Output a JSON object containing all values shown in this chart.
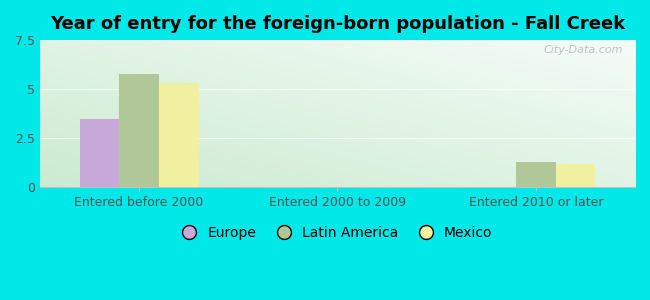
{
  "title": "Year of entry for the foreign-born population - Fall Creek",
  "categories": [
    "Entered before 2000",
    "Entered 2000 to 2009",
    "Entered 2010 or later"
  ],
  "series": [
    {
      "label": "Europe",
      "color": "#c8a8d8",
      "values": [
        3.5,
        0,
        0
      ]
    },
    {
      "label": "Latin America",
      "color": "#b0c898",
      "values": [
        5.75,
        0,
        1.3
      ]
    },
    {
      "label": "Mexico",
      "color": "#f0f0a0",
      "values": [
        5.3,
        0,
        1.2
      ]
    }
  ],
  "ylim": [
    0,
    7.5
  ],
  "yticks": [
    0,
    2.5,
    5.0,
    7.5
  ],
  "bar_width": 0.2,
  "outer_bg": "#00e8e8",
  "watermark": "City-Data.com",
  "title_fontsize": 13,
  "tick_fontsize": 9,
  "legend_fontsize": 10,
  "grid_color": "#d0e8d0",
  "spine_color": "#c0c0c0"
}
